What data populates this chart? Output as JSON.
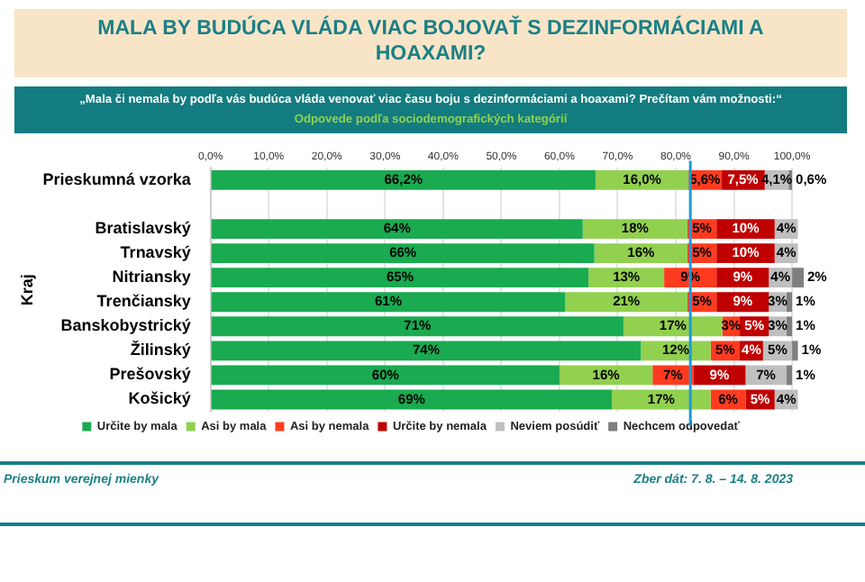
{
  "chart_data": {
    "type": "bar",
    "orientation": "horizontal",
    "stacked": true,
    "title": "MALA BY BUDÚCA VLÁDA VIAC BOJOVAŤ S DEZINFORMÁCIAMI A HOAXAMI?",
    "subtitle": "„Mala či nemala by podľa vás budúca vláda venovať viac času boju s dezinformáciami a hoaxami? Prečítam vám možnosti:“",
    "ylabel": "Kraj",
    "annotations": [
      "Odpovede podľa sociodemografických kategórií",
      "Prieskum verejnej mienky",
      "Zber dát: 7. 8. – 14. 8. 2023"
    ],
    "categories": [
      "Prieskumná vzorka",
      null,
      "Bratislavský",
      "Trnavský",
      "Nitriansky",
      "Trenčiansky",
      "Banskobystrický",
      "Žilinský",
      "Prešovský",
      "Košický"
    ],
    "series": [
      {
        "name": "Určite by mala",
        "color": "#1aaa50",
        "values": [
          66.2,
          null,
          64,
          66,
          65,
          61,
          71,
          74,
          60,
          69
        ],
        "value_labels": [
          "66,2%",
          null,
          "64%",
          "66%",
          "65%",
          "61%",
          "71%",
          "74%",
          "60%",
          "69%"
        ]
      },
      {
        "name": "Asi by mala",
        "color": "#92d050",
        "values": [
          16.0,
          null,
          18,
          16,
          13,
          21,
          17,
          12,
          16,
          17
        ],
        "value_labels": [
          "16,0%",
          null,
          "18%",
          "16%",
          "13%",
          "21%",
          "17%",
          "12%",
          "16%",
          "17%"
        ]
      },
      {
        "name": "Asi by nemala",
        "color": "#ff3b1f",
        "values": [
          5.6,
          null,
          5,
          5,
          9,
          5,
          3,
          5,
          7,
          6
        ],
        "value_labels": [
          "5,6%",
          null,
          "5%",
          "5%",
          "9%",
          "5%",
          "3%",
          "5%",
          "7%",
          "6%"
        ]
      },
      {
        "name": "Určite by nemala",
        "color": "#c00000",
        "values": [
          7.5,
          null,
          10,
          10,
          9,
          9,
          5,
          4,
          9,
          5
        ],
        "value_labels": [
          "7,5%",
          null,
          "10%",
          "10%",
          "9%",
          "9%",
          "5%",
          "4%",
          "9%",
          "5%"
        ]
      },
      {
        "name": "Neviem posúdiť",
        "color": "#bfbfbf",
        "values": [
          4.1,
          null,
          4,
          4,
          4,
          3,
          3,
          5,
          7,
          4
        ],
        "value_labels": [
          "4,1%",
          null,
          "4%",
          "4%",
          "4%",
          "3%",
          "3%",
          "5%",
          "7%",
          "4%"
        ]
      },
      {
        "name": "Nechcem odpovedať",
        "color": "#7f7f7f",
        "values": [
          0.6,
          null,
          null,
          null,
          2,
          1,
          1,
          1,
          1,
          null
        ],
        "value_labels": [
          "0,6%",
          null,
          null,
          null,
          "2%",
          "1%",
          "1%",
          "1%",
          "1%",
          null
        ]
      }
    ],
    "xlim": [
      0,
      102
    ],
    "xticks": [
      {
        "value": 0,
        "label": "0,0%"
      },
      {
        "value": 10,
        "label": "10,0%"
      },
      {
        "value": 20,
        "label": "20,0%"
      },
      {
        "value": 30,
        "label": "30,0%"
      },
      {
        "value": 40,
        "label": "40,0%"
      },
      {
        "value": 50,
        "label": "50,0%"
      },
      {
        "value": 60,
        "label": "60,0%"
      },
      {
        "value": 70,
        "label": "70,0%"
      },
      {
        "value": 80,
        "label": "80,0%"
      },
      {
        "value": 90,
        "label": "90,0%"
      },
      {
        "value": 100,
        "label": "100,0%"
      }
    ],
    "ref_lines": [
      {
        "axis": "x",
        "value": 82.5,
        "color": "#1a9ad6"
      }
    ],
    "grid": "x",
    "legend": "bottom"
  }
}
